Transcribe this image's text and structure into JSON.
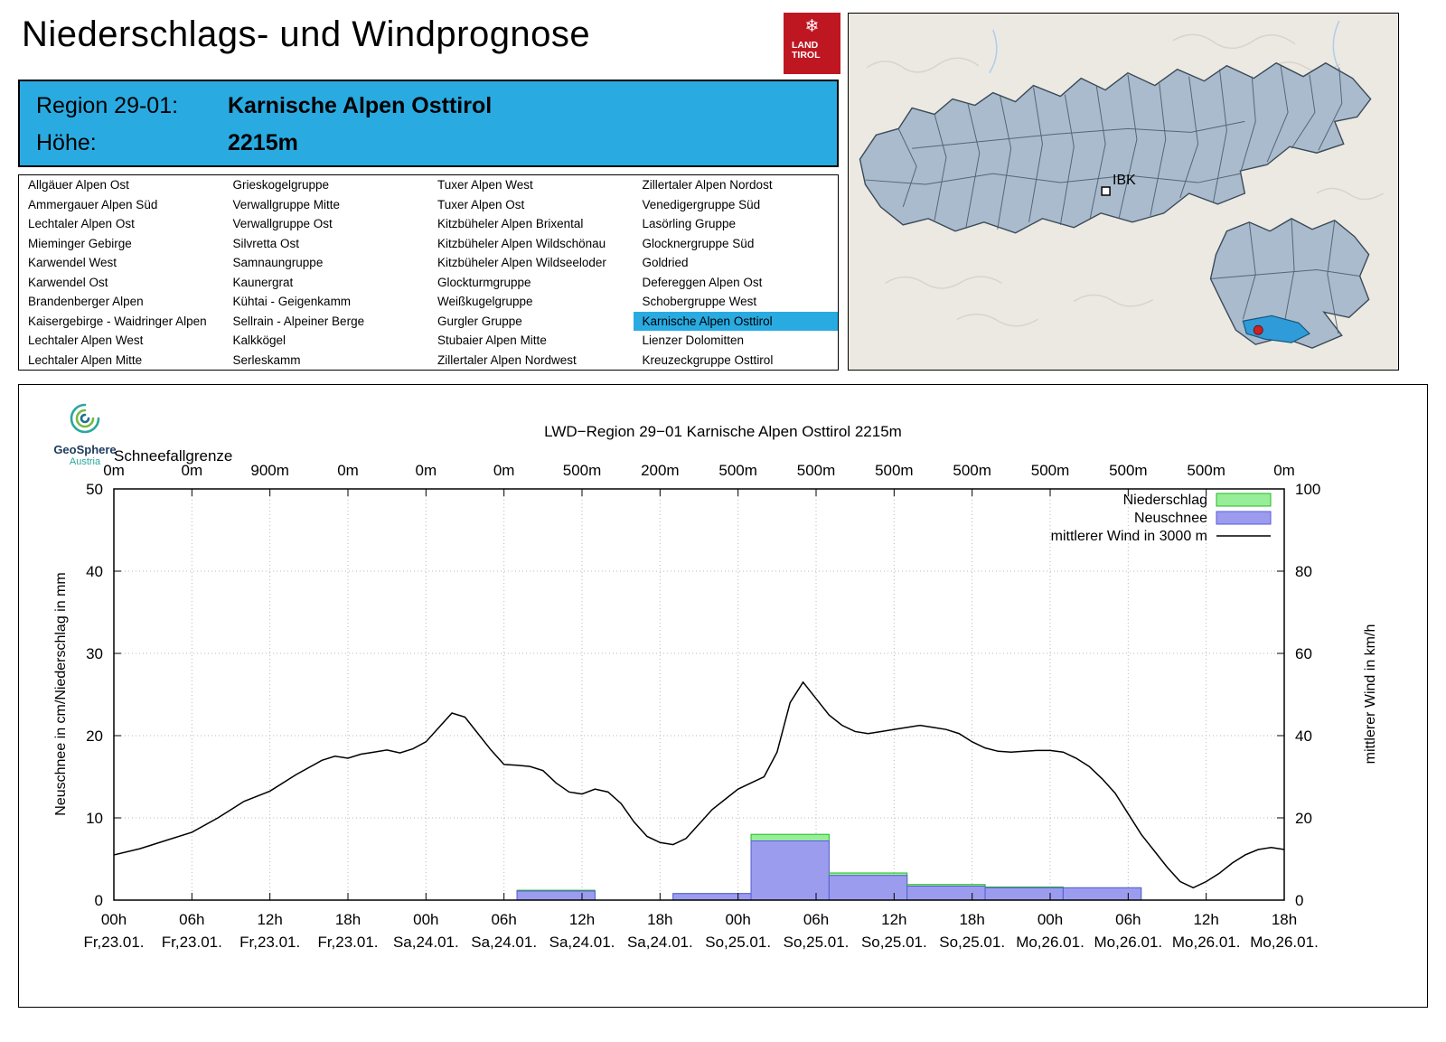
{
  "header": {
    "title": "Niederschlags- und Windprognose",
    "logo": {
      "line1": "LAND",
      "line2": "TIROL",
      "color": "#bf1722"
    }
  },
  "region_info": {
    "region_label": "Region 29-01:",
    "region_value": "Karnische Alpen Osttirol",
    "altitude_label": "Höhe:",
    "altitude_value": "2215m",
    "background_color": "#29abe2"
  },
  "region_list": {
    "selected": "Karnische Alpen Osttirol",
    "columns": [
      [
        "Allgäuer Alpen Ost",
        "Ammergauer Alpen Süd",
        "Lechtaler Alpen Ost",
        "Mieminger Gebirge",
        "Karwendel West",
        "Karwendel Ost",
        "Brandenberger Alpen",
        "Kaisergebirge - Waidringer Alpen",
        "Lechtaler Alpen West",
        "Lechtaler Alpen Mitte"
      ],
      [
        "Grieskogelgruppe",
        "Verwallgruppe Mitte",
        "Verwallgruppe Ost",
        "Silvretta Ost",
        "Samnaungruppe",
        "Kaunergrat",
        "Kühtai - Geigenkamm",
        "Sellrain - Alpeiner Berge",
        "Kalkkögel",
        "Serleskamm"
      ],
      [
        "Tuxer Alpen West",
        "Tuxer Alpen Ost",
        "Kitzbüheler Alpen Brixental",
        "Kitzbüheler Alpen Wildschönau",
        "Kitzbüheler Alpen Wildseeloder",
        "Glockturmgruppe",
        "Weißkugelgruppe",
        "Gurgler Gruppe",
        "Stubaier Alpen Mitte",
        "Zillertaler Alpen Nordwest"
      ],
      [
        "Zillertaler Alpen Nordost",
        "Venedigergruppe Süd",
        "Lasörling Gruppe",
        "Glocknergruppe Süd",
        "Goldried",
        "Defereggen Alpen Ost",
        "Schobergruppe West",
        "Karnische Alpen Osttirol",
        "Lienzer Dolomitten",
        "Kreuzeckgruppe Osttirol"
      ]
    ]
  },
  "map": {
    "city_label": "IBK",
    "region_fill": "#a9bbcc",
    "highlight_color": "#2f9bd8",
    "marker_color": "#cc2222"
  },
  "geosphere": {
    "name": "GeoSphere",
    "sub": "Austria"
  },
  "chart_data": {
    "type": "mixed",
    "title": "LWD−Region 29−01 Karnische Alpen Osttirol 2215m",
    "ylabel_left": "Neuschnee in cm/Niederschlag in mm",
    "ylabel_right": "mittlerer Wind in km/h",
    "ylim_left": [
      0,
      50
    ],
    "ylim_right": [
      0,
      100
    ],
    "y_left_ticks": [
      0,
      10,
      20,
      30,
      40,
      50
    ],
    "y_right_ticks": [
      0,
      20,
      40,
      60,
      80,
      100
    ],
    "x_hour_max": 90,
    "x_ticks_hours": [
      "00h",
      "06h",
      "12h",
      "18h",
      "00h",
      "06h",
      "12h",
      "18h",
      "00h",
      "06h",
      "12h",
      "18h",
      "00h",
      "06h",
      "12h",
      "18h"
    ],
    "x_ticks_days": [
      "Fr,23.01.",
      "Fr,23.01.",
      "Fr,23.01.",
      "Fr,23.01.",
      "Sa,24.01.",
      "Sa,24.01.",
      "Sa,24.01.",
      "Sa,24.01.",
      "So,25.01.",
      "So,25.01.",
      "So,25.01.",
      "So,25.01.",
      "Mo,26.01.",
      "Mo,26.01.",
      "Mo,26.01.",
      "Mo,26.01."
    ],
    "schneefallgrenze_label": "Schneefallgrenze",
    "schneefallgrenze": [
      "0m",
      "0m",
      "900m",
      "0m",
      "0m",
      "0m",
      "500m",
      "200m",
      "500m",
      "500m",
      "500m",
      "500m",
      "500m",
      "500m",
      "500m",
      "0m"
    ],
    "legend": [
      {
        "label": "Niederschlag",
        "type": "bar",
        "fill": "#98ee98",
        "stroke": "#22bb22"
      },
      {
        "label": "Neuschnee",
        "type": "bar",
        "fill": "#9c9cef",
        "stroke": "#5a5adf"
      },
      {
        "label": "mittlerer Wind in 3000 m",
        "type": "line",
        "color": "#000000"
      }
    ],
    "colors": {
      "niederschlag_fill": "#98ee98",
      "niederschlag_stroke": "#22bb22",
      "neuschnee_fill": "#9c9cef",
      "neuschnee_stroke": "#5a5adf",
      "wind": "#000000"
    },
    "bars": [
      {
        "start": 31,
        "end": 37,
        "niederschlag": 1.2,
        "neuschnee": 1.1
      },
      {
        "start": 43,
        "end": 49,
        "niederschlag": 0.8,
        "neuschnee": 0.8
      },
      {
        "start": 49,
        "end": 55,
        "niederschlag": 8.0,
        "neuschnee": 7.2
      },
      {
        "start": 55,
        "end": 61,
        "niederschlag": 3.3,
        "neuschnee": 3.0
      },
      {
        "start": 61,
        "end": 67,
        "niederschlag": 1.9,
        "neuschnee": 1.7
      },
      {
        "start": 67,
        "end": 73,
        "niederschlag": 1.6,
        "neuschnee": 1.5
      },
      {
        "start": 73,
        "end": 79,
        "niederschlag": 1.5,
        "neuschnee": 1.5
      }
    ],
    "wind_series": [
      [
        0,
        11
      ],
      [
        2,
        12.5
      ],
      [
        4,
        14.5
      ],
      [
        6,
        16.5
      ],
      [
        8,
        20
      ],
      [
        10,
        24
      ],
      [
        12,
        26.5
      ],
      [
        14,
        30.5
      ],
      [
        16,
        34
      ],
      [
        17,
        35
      ],
      [
        18,
        34.5
      ],
      [
        19,
        35.5
      ],
      [
        20,
        36
      ],
      [
        21,
        36.5
      ],
      [
        22,
        35.8
      ],
      [
        23,
        36.8
      ],
      [
        24,
        38.5
      ],
      [
        25,
        42
      ],
      [
        26,
        45.5
      ],
      [
        27,
        44.5
      ],
      [
        28,
        40.5
      ],
      [
        29,
        36.5
      ],
      [
        30,
        33
      ],
      [
        31,
        32.8
      ],
      [
        32,
        32.5
      ],
      [
        33,
        31.5
      ],
      [
        34,
        28.5
      ],
      [
        35,
        26.3
      ],
      [
        36,
        25.8
      ],
      [
        37,
        27
      ],
      [
        38,
        26.3
      ],
      [
        39,
        23.5
      ],
      [
        40,
        19
      ],
      [
        41,
        15.5
      ],
      [
        42,
        14
      ],
      [
        43,
        13.5
      ],
      [
        44,
        15
      ],
      [
        45,
        18.5
      ],
      [
        46,
        22
      ],
      [
        47,
        24.5
      ],
      [
        48,
        27
      ],
      [
        49,
        28.5
      ],
      [
        50,
        30
      ],
      [
        51,
        36
      ],
      [
        52,
        48
      ],
      [
        53,
        53
      ],
      [
        54,
        49
      ],
      [
        55,
        45
      ],
      [
        56,
        42.5
      ],
      [
        57,
        41
      ],
      [
        58,
        40.5
      ],
      [
        59,
        41
      ],
      [
        60,
        41.5
      ],
      [
        61,
        42
      ],
      [
        62,
        42.5
      ],
      [
        63,
        42
      ],
      [
        64,
        41.5
      ],
      [
        65,
        40.5
      ],
      [
        66,
        38.5
      ],
      [
        67,
        37
      ],
      [
        68,
        36.2
      ],
      [
        69,
        36
      ],
      [
        70,
        36.2
      ],
      [
        71,
        36.4
      ],
      [
        72,
        36.4
      ],
      [
        73,
        36
      ],
      [
        74,
        34.5
      ],
      [
        75,
        32.5
      ],
      [
        76,
        29.5
      ],
      [
        77,
        26
      ],
      [
        78,
        21
      ],
      [
        79,
        16
      ],
      [
        80,
        12
      ],
      [
        81,
        8
      ],
      [
        82,
        4.5
      ],
      [
        83,
        3
      ],
      [
        84,
        4.5
      ],
      [
        85,
        6.5
      ],
      [
        86,
        9
      ],
      [
        87,
        11
      ],
      [
        88,
        12.3
      ],
      [
        89,
        12.8
      ],
      [
        90,
        12.3
      ]
    ]
  }
}
